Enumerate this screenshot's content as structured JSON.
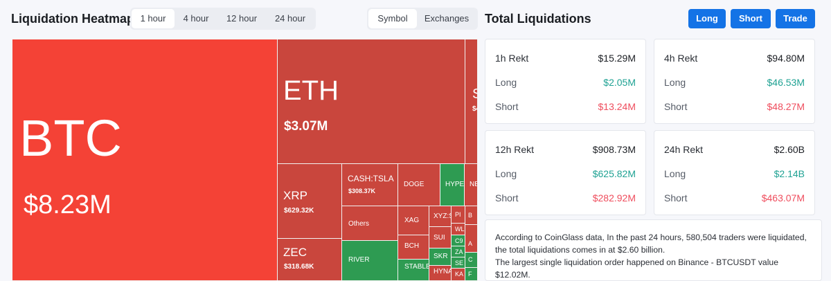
{
  "heatmap": {
    "title": "Liquidation Heatmap",
    "time_tabs": [
      "1 hour",
      "4 hour",
      "12 hour",
      "24 hour"
    ],
    "time_active": "1 hour",
    "view_tabs": [
      "Symbol",
      "Exchanges"
    ],
    "view_active": "Symbol",
    "cells": {
      "btc": {
        "name": "BTC",
        "value": "$8.23M"
      },
      "eth": {
        "name": "ETH",
        "value": "$3.07M"
      },
      "sol": {
        "name": "S",
        "value": "$4"
      },
      "xrp": {
        "name": "XRP",
        "value": "$629.32K"
      },
      "zec": {
        "name": "ZEC",
        "value": "$318.68K"
      },
      "tsla": {
        "name": "CASH:TSLA",
        "value": "$308.37K"
      },
      "others": {
        "name": "Others"
      },
      "river": {
        "name": "RIVER"
      },
      "doge": {
        "name": "DOGE"
      },
      "hype": {
        "name": "HYPE"
      },
      "ne": {
        "name": "NE"
      },
      "xag": {
        "name": "XAG"
      },
      "bch": {
        "name": "BCH"
      },
      "stable": {
        "name": "STABLE"
      },
      "xyz": {
        "name": "XYZ:S"
      },
      "sui": {
        "name": "SUI"
      },
      "skr": {
        "name": "SKR"
      },
      "hyna": {
        "name": "HYNA"
      },
      "pi": {
        "name": "PI"
      },
      "wl": {
        "name": "WL"
      },
      "c9": {
        "name": "C9"
      },
      "za": {
        "name": "ZA"
      },
      "se": {
        "name": "SE"
      },
      "ka": {
        "name": "KA"
      },
      "b": {
        "name": "B"
      },
      "a": {
        "name": "A"
      },
      "c": {
        "name": "C"
      },
      "f": {
        "name": "F"
      }
    }
  },
  "totals": {
    "title": "Total Liquidations",
    "buttons": {
      "long": "Long",
      "short": "Short",
      "trade": "Trade"
    },
    "cards": [
      {
        "label": "1h Rekt",
        "total": "$15.29M",
        "long_label": "Long",
        "long": "$2.05M",
        "short_label": "Short",
        "short": "$13.24M"
      },
      {
        "label": "4h Rekt",
        "total": "$94.80M",
        "long_label": "Long",
        "long": "$46.53M",
        "short_label": "Short",
        "short": "$48.27M"
      },
      {
        "label": "12h Rekt",
        "total": "$908.73M",
        "long_label": "Long",
        "long": "$625.82M",
        "short_label": "Short",
        "short": "$282.92M"
      },
      {
        "label": "24h Rekt",
        "total": "$2.60B",
        "long_label": "Long",
        "long": "$2.14B",
        "short_label": "Short",
        "short": "$463.07M"
      }
    ],
    "note_line1": "According to CoinGlass data, In the past 24 hours, 580,504 traders were liquidated, the total liquidations comes in at $2.60 billion.",
    "note_line2": "The largest single liquidation order happened on Binance - BTCUSDT value $12.02M."
  }
}
